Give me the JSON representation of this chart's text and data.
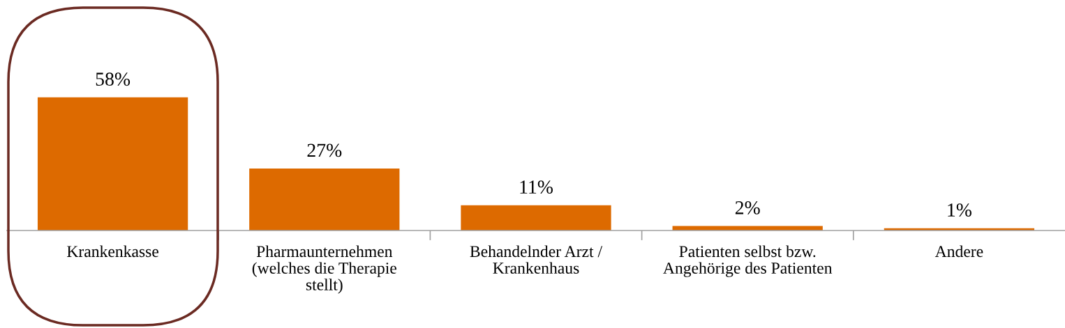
{
  "chart_data": {
    "type": "bar",
    "categories": [
      "Krankenkasse",
      "Pharmaunternehmen\n(welches die Therapie\nstellt)",
      "Behandelnder Arzt /\nKrankenhaus",
      "Patienten selbst bzw.\nAngehörige des Patienten",
      "Andere"
    ],
    "values": [
      58,
      27,
      11,
      2,
      1
    ],
    "value_labels": [
      "58%",
      "27%",
      "11%",
      "2%",
      "1%"
    ],
    "color": "#dd6a00",
    "grid": false,
    "legend": false
  }
}
